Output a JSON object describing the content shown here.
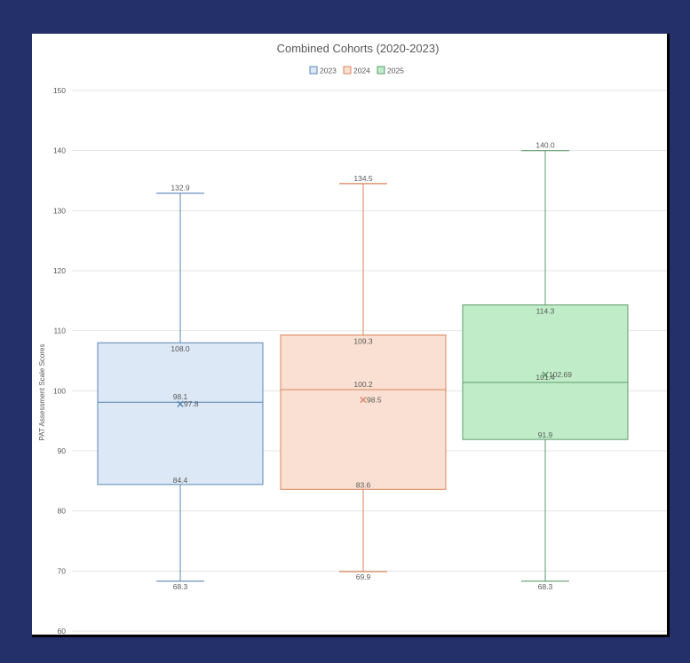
{
  "colors": {
    "outer_background": "#24306a",
    "panel_background": "#ffffff",
    "gridline": "#e4e4e4",
    "text": "#595959"
  },
  "chart_data": {
    "type": "box",
    "title": "Combined Cohorts (2020-2023)",
    "xlabel": "",
    "ylabel": "PAT Assessment Scale Scores",
    "ylim": [
      60,
      150
    ],
    "yticks": [
      "60",
      "70",
      "80",
      "90",
      "100",
      "110",
      "120",
      "130",
      "140",
      "150"
    ],
    "grid": true,
    "legend_position": "top-center",
    "series": [
      {
        "name": "2023",
        "fill": "#dce8f5",
        "stroke": "#5b87b4",
        "min": 68.3,
        "q1": 84.4,
        "median": 98.1,
        "q3": 108.0,
        "max": 132.9,
        "mean": 97.8,
        "labels": {
          "min": "68.3",
          "q1": "84.4",
          "median": "98.1",
          "q3": "108.0",
          "max": "132.9",
          "mean": "97.8"
        }
      },
      {
        "name": "2024",
        "fill": "#fae0d2",
        "stroke": "#d9845c",
        "min": 69.9,
        "q1": 83.6,
        "median": 100.2,
        "q3": 109.3,
        "max": 134.5,
        "mean": 98.5,
        "labels": {
          "min": "69.9",
          "q1": "83.6",
          "median": "100.2",
          "q3": "109.3",
          "max": "134.5",
          "mean": "98.5"
        }
      },
      {
        "name": "2025",
        "fill": "#c0edc8",
        "stroke": "#5e9a6c",
        "min": 68.3,
        "q1": 91.9,
        "median": 101.4,
        "q3": 114.3,
        "max": 140.0,
        "mean": 102.69,
        "labels": {
          "min": "68.3",
          "q1": "91.9",
          "median": "101.4",
          "q3": "114.3",
          "max": "140.0",
          "mean": "102.69"
        }
      }
    ]
  }
}
